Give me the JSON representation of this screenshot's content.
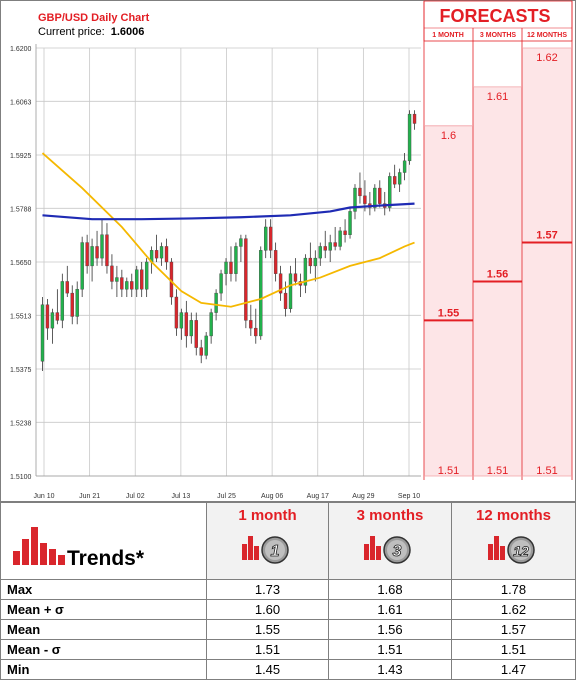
{
  "chart_title": "GBP/USD Daily Chart",
  "current_price_label": "Current price:",
  "current_price": "1.6006",
  "forecast_panel": {
    "title": "FORECASTS",
    "columns": [
      "1 MONTH",
      "3 MONTHS",
      "12 MONTHS"
    ],
    "color": "#e31e24",
    "bands": [
      {
        "min": 1.51,
        "mean": 1.55,
        "max": 1.6,
        "min_label": "1.51",
        "mean_label": "1.55",
        "max_label": "1.6"
      },
      {
        "min": 1.51,
        "mean": 1.56,
        "max": 1.61,
        "min_label": "1.51",
        "mean_label": "1.56",
        "max_label": "1.61"
      },
      {
        "min": 1.51,
        "mean": 1.57,
        "max": 1.62,
        "min_label": "1.51",
        "mean_label": "1.57",
        "max_label": "1.62"
      }
    ]
  },
  "chart_data": {
    "type": "candlestick",
    "ylim": [
      1.51,
      1.62
    ],
    "yticks": [
      "1.6200",
      "1.6063",
      "1.5925",
      "1.5788",
      "1.5650",
      "1.5513",
      "1.5375",
      "1.5238",
      "1.5100"
    ],
    "xticks": [
      "Jun 10",
      "Jun 21",
      "Jul 02",
      "Jul 13",
      "Jul 25",
      "Aug 06",
      "Aug 17",
      "Aug 29",
      "Sep 10"
    ],
    "colors": {
      "up": "#22b14c",
      "down": "#d9262c",
      "ma_short": "#f5b800",
      "ma_long": "#1f2bb4"
    },
    "candles": [
      {
        "o": 1.5395,
        "h": 1.556,
        "l": 1.537,
        "c": 1.554
      },
      {
        "o": 1.554,
        "h": 1.5555,
        "l": 1.545,
        "c": 1.548
      },
      {
        "o": 1.548,
        "h": 1.553,
        "l": 1.544,
        "c": 1.552
      },
      {
        "o": 1.552,
        "h": 1.558,
        "l": 1.549,
        "c": 1.55
      },
      {
        "o": 1.55,
        "h": 1.562,
        "l": 1.548,
        "c": 1.56
      },
      {
        "o": 1.56,
        "h": 1.564,
        "l": 1.556,
        "c": 1.557
      },
      {
        "o": 1.557,
        "h": 1.559,
        "l": 1.549,
        "c": 1.551
      },
      {
        "o": 1.551,
        "h": 1.56,
        "l": 1.549,
        "c": 1.558
      },
      {
        "o": 1.558,
        "h": 1.5715,
        "l": 1.556,
        "c": 1.57
      },
      {
        "o": 1.57,
        "h": 1.572,
        "l": 1.562,
        "c": 1.564
      },
      {
        "o": 1.564,
        "h": 1.571,
        "l": 1.56,
        "c": 1.569
      },
      {
        "o": 1.569,
        "h": 1.573,
        "l": 1.564,
        "c": 1.566
      },
      {
        "o": 1.566,
        "h": 1.576,
        "l": 1.564,
        "c": 1.572
      },
      {
        "o": 1.572,
        "h": 1.575,
        "l": 1.562,
        "c": 1.564
      },
      {
        "o": 1.564,
        "h": 1.567,
        "l": 1.558,
        "c": 1.56
      },
      {
        "o": 1.56,
        "h": 1.564,
        "l": 1.556,
        "c": 1.561
      },
      {
        "o": 1.561,
        "h": 1.563,
        "l": 1.556,
        "c": 1.558
      },
      {
        "o": 1.558,
        "h": 1.561,
        "l": 1.556,
        "c": 1.56
      },
      {
        "o": 1.56,
        "h": 1.562,
        "l": 1.556,
        "c": 1.558
      },
      {
        "o": 1.558,
        "h": 1.564,
        "l": 1.556,
        "c": 1.563
      },
      {
        "o": 1.563,
        "h": 1.565,
        "l": 1.556,
        "c": 1.558
      },
      {
        "o": 1.558,
        "h": 1.566,
        "l": 1.556,
        "c": 1.565
      },
      {
        "o": 1.565,
        "h": 1.569,
        "l": 1.562,
        "c": 1.568
      },
      {
        "o": 1.568,
        "h": 1.572,
        "l": 1.565,
        "c": 1.566
      },
      {
        "o": 1.566,
        "h": 1.57,
        "l": 1.564,
        "c": 1.569
      },
      {
        "o": 1.569,
        "h": 1.571,
        "l": 1.563,
        "c": 1.565
      },
      {
        "o": 1.565,
        "h": 1.566,
        "l": 1.554,
        "c": 1.556
      },
      {
        "o": 1.556,
        "h": 1.558,
        "l": 1.546,
        "c": 1.548
      },
      {
        "o": 1.548,
        "h": 1.553,
        "l": 1.545,
        "c": 1.552
      },
      {
        "o": 1.552,
        "h": 1.555,
        "l": 1.543,
        "c": 1.546
      },
      {
        "o": 1.546,
        "h": 1.552,
        "l": 1.544,
        "c": 1.55
      },
      {
        "o": 1.55,
        "h": 1.552,
        "l": 1.541,
        "c": 1.543
      },
      {
        "o": 1.543,
        "h": 1.545,
        "l": 1.539,
        "c": 1.541
      },
      {
        "o": 1.541,
        "h": 1.547,
        "l": 1.54,
        "c": 1.546
      },
      {
        "o": 1.546,
        "h": 1.553,
        "l": 1.544,
        "c": 1.552
      },
      {
        "o": 1.552,
        "h": 1.558,
        "l": 1.55,
        "c": 1.557
      },
      {
        "o": 1.557,
        "h": 1.563,
        "l": 1.555,
        "c": 1.562
      },
      {
        "o": 1.562,
        "h": 1.566,
        "l": 1.559,
        "c": 1.565
      },
      {
        "o": 1.565,
        "h": 1.569,
        "l": 1.56,
        "c": 1.562
      },
      {
        "o": 1.562,
        "h": 1.57,
        "l": 1.56,
        "c": 1.569
      },
      {
        "o": 1.569,
        "h": 1.572,
        "l": 1.565,
        "c": 1.571
      },
      {
        "o": 1.571,
        "h": 1.572,
        "l": 1.548,
        "c": 1.55
      },
      {
        "o": 1.55,
        "h": 1.554,
        "l": 1.546,
        "c": 1.548
      },
      {
        "o": 1.548,
        "h": 1.553,
        "l": 1.544,
        "c": 1.546
      },
      {
        "o": 1.546,
        "h": 1.569,
        "l": 1.545,
        "c": 1.568
      },
      {
        "o": 1.568,
        "h": 1.576,
        "l": 1.566,
        "c": 1.574
      },
      {
        "o": 1.574,
        "h": 1.576,
        "l": 1.566,
        "c": 1.568
      },
      {
        "o": 1.568,
        "h": 1.57,
        "l": 1.56,
        "c": 1.562
      },
      {
        "o": 1.562,
        "h": 1.564,
        "l": 1.555,
        "c": 1.557
      },
      {
        "o": 1.557,
        "h": 1.56,
        "l": 1.551,
        "c": 1.553
      },
      {
        "o": 1.553,
        "h": 1.564,
        "l": 1.552,
        "c": 1.562
      },
      {
        "o": 1.562,
        "h": 1.566,
        "l": 1.559,
        "c": 1.56
      },
      {
        "o": 1.56,
        "h": 1.562,
        "l": 1.556,
        "c": 1.559
      },
      {
        "o": 1.559,
        "h": 1.567,
        "l": 1.557,
        "c": 1.566
      },
      {
        "o": 1.566,
        "h": 1.57,
        "l": 1.562,
        "c": 1.564
      },
      {
        "o": 1.564,
        "h": 1.568,
        "l": 1.56,
        "c": 1.566
      },
      {
        "o": 1.566,
        "h": 1.57,
        "l": 1.564,
        "c": 1.569
      },
      {
        "o": 1.569,
        "h": 1.573,
        "l": 1.566,
        "c": 1.568
      },
      {
        "o": 1.568,
        "h": 1.572,
        "l": 1.565,
        "c": 1.57
      },
      {
        "o": 1.57,
        "h": 1.574,
        "l": 1.568,
        "c": 1.569
      },
      {
        "o": 1.569,
        "h": 1.574,
        "l": 1.568,
        "c": 1.573
      },
      {
        "o": 1.573,
        "h": 1.576,
        "l": 1.57,
        "c": 1.572
      },
      {
        "o": 1.572,
        "h": 1.579,
        "l": 1.571,
        "c": 1.578
      },
      {
        "o": 1.578,
        "h": 1.585,
        "l": 1.576,
        "c": 1.584
      },
      {
        "o": 1.584,
        "h": 1.588,
        "l": 1.58,
        "c": 1.582
      },
      {
        "o": 1.582,
        "h": 1.586,
        "l": 1.578,
        "c": 1.58
      },
      {
        "o": 1.58,
        "h": 1.583,
        "l": 1.577,
        "c": 1.579
      },
      {
        "o": 1.579,
        "h": 1.585,
        "l": 1.578,
        "c": 1.584
      },
      {
        "o": 1.584,
        "h": 1.586,
        "l": 1.579,
        "c": 1.58
      },
      {
        "o": 1.58,
        "h": 1.583,
        "l": 1.577,
        "c": 1.579
      },
      {
        "o": 1.579,
        "h": 1.588,
        "l": 1.578,
        "c": 1.587
      },
      {
        "o": 1.587,
        "h": 1.59,
        "l": 1.584,
        "c": 1.585
      },
      {
        "o": 1.585,
        "h": 1.589,
        "l": 1.583,
        "c": 1.588
      },
      {
        "o": 1.588,
        "h": 1.593,
        "l": 1.586,
        "c": 1.591
      },
      {
        "o": 1.591,
        "h": 1.604,
        "l": 1.59,
        "c": 1.603
      },
      {
        "o": 1.603,
        "h": 1.604,
        "l": 1.599,
        "c": 1.6006
      }
    ],
    "ma_short": [
      [
        0,
        1.593
      ],
      [
        8,
        1.584
      ],
      [
        16,
        1.574
      ],
      [
        22,
        1.565
      ],
      [
        28,
        1.5575
      ],
      [
        32,
        1.5545
      ],
      [
        38,
        1.5535
      ],
      [
        44,
        1.5555
      ],
      [
        50,
        1.559
      ],
      [
        56,
        1.561
      ],
      [
        62,
        1.564
      ],
      [
        68,
        1.566
      ],
      [
        73,
        1.569
      ],
      [
        75,
        1.57
      ]
    ],
    "ma_long": [
      [
        0,
        1.577
      ],
      [
        10,
        1.576
      ],
      [
        20,
        1.576
      ],
      [
        30,
        1.5762
      ],
      [
        40,
        1.5765
      ],
      [
        50,
        1.577
      ],
      [
        58,
        1.578
      ],
      [
        62,
        1.579
      ],
      [
        68,
        1.5795
      ],
      [
        75,
        1.58
      ]
    ]
  },
  "trends_table": {
    "title": "Trends*",
    "columns": [
      {
        "label": "1 month",
        "badge": "1"
      },
      {
        "label": "3 months",
        "badge": "3"
      },
      {
        "label": "12 months",
        "badge": "12"
      }
    ],
    "rows": [
      {
        "label": "Max",
        "values": [
          "1.73",
          "1.68",
          "1.78"
        ]
      },
      {
        "label": "Mean + σ",
        "values": [
          "1.60",
          "1.61",
          "1.62"
        ]
      },
      {
        "label": "Mean",
        "values": [
          "1.55",
          "1.56",
          "1.57"
        ]
      },
      {
        "label": "Mean - σ",
        "values": [
          "1.51",
          "1.51",
          "1.51"
        ]
      },
      {
        "label": "Min",
        "values": [
          "1.45",
          "1.43",
          "1.47"
        ]
      }
    ]
  }
}
